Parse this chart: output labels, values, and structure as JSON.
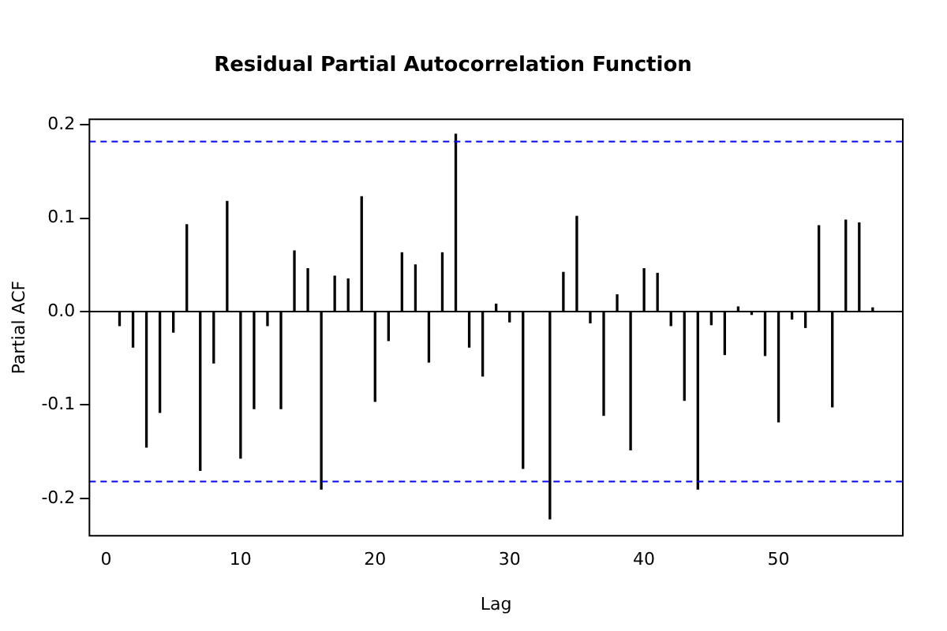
{
  "chart_data": {
    "type": "bar",
    "title": "Residual Partial Autocorrelation Function",
    "xlabel": "Lag",
    "ylabel": "Partial ACF",
    "x": [
      1,
      2,
      3,
      4,
      5,
      6,
      7,
      8,
      9,
      10,
      11,
      12,
      13,
      14,
      15,
      16,
      17,
      18,
      19,
      20,
      21,
      22,
      23,
      24,
      25,
      26,
      27,
      28,
      29,
      30,
      31,
      32,
      33,
      34,
      35,
      36,
      37,
      38,
      39,
      40,
      41,
      42,
      43,
      44,
      45,
      46,
      47,
      48,
      49,
      50,
      51,
      52,
      53,
      54,
      55,
      56,
      57
    ],
    "series": [
      {
        "color": "#000000",
        "values": [
          -0.015,
          -0.038,
          -0.145,
          -0.108,
          -0.022,
          0.093,
          -0.17,
          -0.055,
          0.118,
          -0.157,
          -0.104,
          -0.015,
          -0.104,
          0.065,
          0.046,
          -0.19,
          0.038,
          0.035,
          0.123,
          -0.096,
          -0.031,
          0.063,
          0.05,
          -0.054,
          0.063,
          0.19,
          -0.038,
          -0.069,
          0.008,
          -0.011,
          -0.168,
          null,
          -0.222,
          0.042,
          0.102,
          -0.012,
          -0.111,
          0.018,
          -0.148,
          0.046,
          0.041,
          -0.015,
          -0.095,
          -0.19,
          -0.014,
          -0.046,
          0.005,
          -0.003,
          -0.047,
          -0.118,
          -0.008,
          -0.017,
          0.092,
          -0.102,
          0.098,
          0.095,
          0.004
        ]
      }
    ],
    "xlim": [
      -1.24,
      59.24
    ],
    "xticks": [
      0,
      10,
      20,
      30,
      40,
      50
    ],
    "ylim": [
      -0.24,
      0.206
    ],
    "yticks": [
      {
        "value": -0.2,
        "label": "-0.2"
      },
      {
        "value": -0.1,
        "label": "-0.1"
      },
      {
        "value": 0,
        "label": "0.0"
      },
      {
        "value": 0.1,
        "label": "0.1"
      },
      {
        "value": 0.2,
        "label": "0.2"
      }
    ],
    "ref_lines": [
      {
        "axis": "y",
        "value": 0.182,
        "color": "#0000ff",
        "line_style": "dashed"
      },
      {
        "axis": "y",
        "value": -0.182,
        "color": "#0000ff",
        "line_style": "dashed"
      },
      {
        "axis": "y",
        "value": 0,
        "color": "#000000",
        "line_style": "solid"
      }
    ],
    "grid": false,
    "legend": false
  }
}
